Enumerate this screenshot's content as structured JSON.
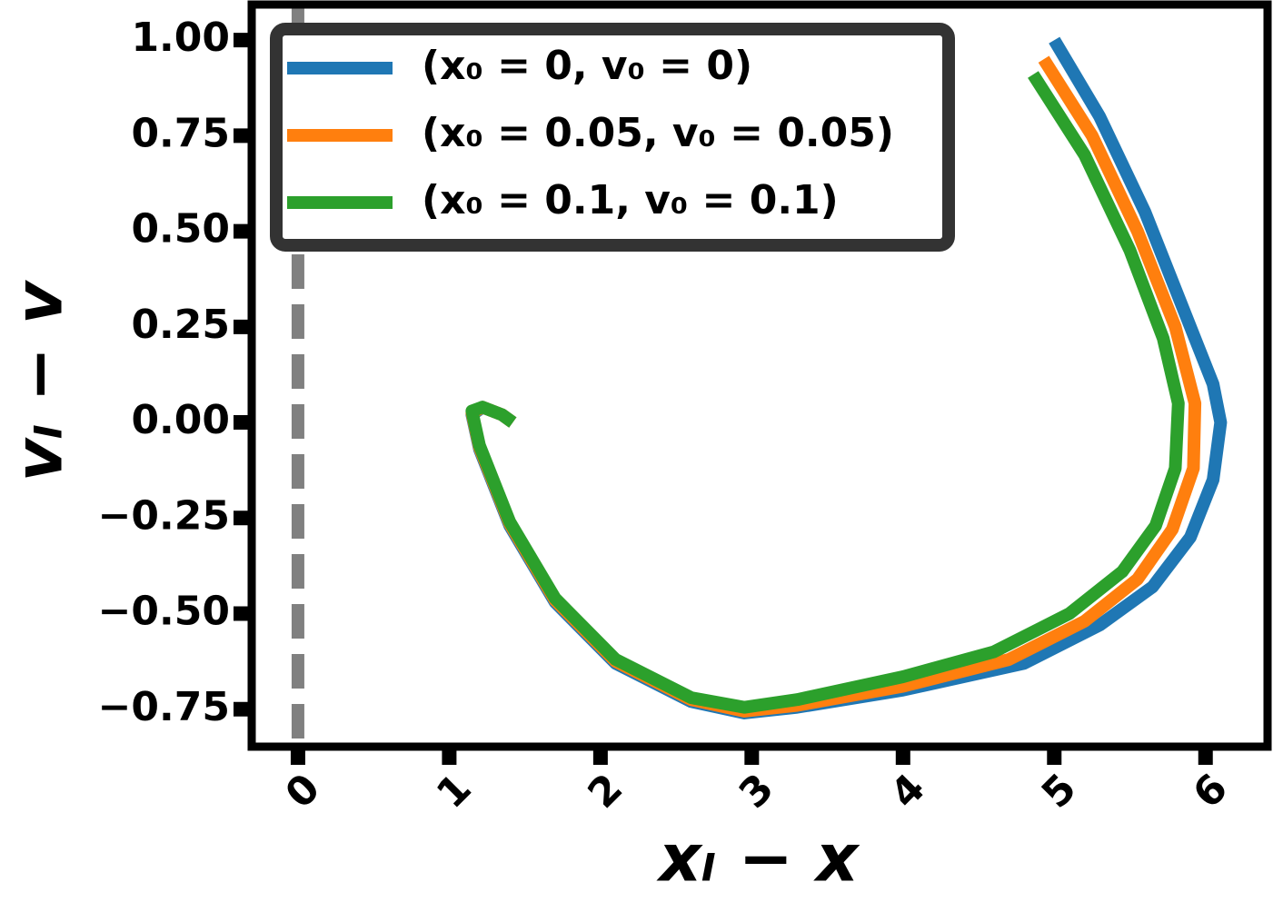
{
  "chart_data": {
    "type": "line",
    "xlabel": "xₗ − x",
    "ylabel": "vₗ − v",
    "xlim": [
      -0.306,
      6.41
    ],
    "ylim": [
      -0.848,
      1.093
    ],
    "xticks": [
      0,
      1,
      2,
      3,
      4,
      5,
      6
    ],
    "yticks": [
      {
        "value": 1,
        "label": "1.00"
      },
      {
        "value": 0.75,
        "label": "0.75"
      },
      {
        "value": 0.5,
        "label": "0.50"
      },
      {
        "value": 0.25,
        "label": "0.25"
      },
      {
        "value": 0,
        "label": "0.00"
      },
      {
        "value": -0.25,
        "label": "−0.25"
      },
      {
        "value": -0.5,
        "label": "−0.50"
      },
      {
        "value": -0.75,
        "label": "−0.75"
      }
    ],
    "vline": 0,
    "vline_color": "#808080",
    "legend": "upper left",
    "series": [
      {
        "name": "(x₀ = 0, v₀ = 0)",
        "color": "#1f77b4",
        "x": [
          5.0,
          5.3,
          5.6,
          5.85,
          6.05,
          6.1,
          6.05,
          5.9,
          5.65,
          5.3,
          4.8,
          4.0,
          3.3,
          2.95,
          2.6,
          2.1,
          1.7,
          1.4,
          1.2,
          1.15,
          1.22,
          1.35,
          1.42
        ],
        "values": [
          1.0,
          0.8,
          0.55,
          0.3,
          0.1,
          0.0,
          -0.15,
          -0.3,
          -0.43,
          -0.53,
          -0.63,
          -0.7,
          -0.745,
          -0.76,
          -0.73,
          -0.63,
          -0.47,
          -0.27,
          -0.07,
          0.02,
          0.04,
          0.02,
          0.0
        ]
      },
      {
        "name": "(x₀ = 0.05, v₀ = 0.05)",
        "color": "#ff7f0e",
        "x": [
          4.93,
          5.25,
          5.55,
          5.8,
          5.93,
          5.92,
          5.78,
          5.55,
          5.2,
          4.7,
          4.0,
          3.3,
          2.95,
          2.6,
          2.1,
          1.7,
          1.4,
          1.2,
          1.15,
          1.22,
          1.35,
          1.42
        ],
        "values": [
          0.95,
          0.75,
          0.5,
          0.25,
          0.05,
          -0.12,
          -0.28,
          -0.41,
          -0.52,
          -0.62,
          -0.69,
          -0.74,
          -0.755,
          -0.725,
          -0.625,
          -0.465,
          -0.265,
          -0.065,
          0.025,
          0.04,
          0.02,
          0.0
        ]
      },
      {
        "name": "(x₀ = 0.1, v₀ = 0.1)",
        "color": "#2ca02c",
        "x": [
          4.86,
          5.2,
          5.5,
          5.72,
          5.82,
          5.8,
          5.67,
          5.45,
          5.1,
          4.6,
          4.0,
          3.3,
          2.95,
          2.6,
          2.1,
          1.7,
          1.4,
          1.2,
          1.15,
          1.22,
          1.35,
          1.42
        ],
        "values": [
          0.91,
          0.7,
          0.45,
          0.22,
          0.05,
          -0.12,
          -0.27,
          -0.39,
          -0.5,
          -0.6,
          -0.665,
          -0.725,
          -0.745,
          -0.72,
          -0.62,
          -0.46,
          -0.26,
          -0.06,
          0.03,
          0.04,
          0.02,
          0.0
        ]
      }
    ]
  }
}
